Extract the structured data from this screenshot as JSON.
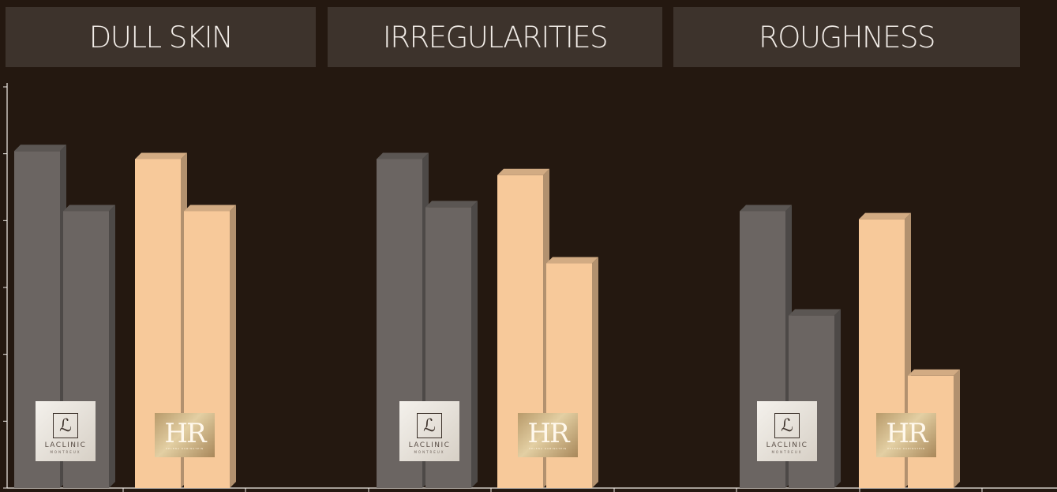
{
  "chart_data": {
    "type": "bar",
    "categories": [
      "DULL SKIN",
      "IRREGULARITIES",
      "ROUGHNESS"
    ],
    "groups": [
      {
        "category": "DULL SKIN",
        "brand": "LACLINIC MONTREUX",
        "values": [
          0.84,
          0.69
        ]
      },
      {
        "category": "DULL SKIN",
        "brand": "HR",
        "values": [
          0.82,
          0.69
        ]
      },
      {
        "category": "IRREGULARITIES",
        "brand": "LACLINIC MONTREUX",
        "values": [
          0.82,
          0.7
        ]
      },
      {
        "category": "IRREGULARITIES",
        "brand": "HR",
        "values": [
          0.78,
          0.56
        ]
      },
      {
        "category": "ROUGHNESS",
        "brand": "LACLINIC MONTREUX",
        "values": [
          0.69,
          0.43
        ]
      },
      {
        "category": "ROUGHNESS",
        "brand": "HR",
        "values": [
          0.67,
          0.28
        ]
      }
    ],
    "ylim": [
      0,
      1
    ],
    "grid": false,
    "colors": {
      "background": "#241810",
      "laclinic_bar": "#6b6562",
      "hr_bar": "#f7c99a",
      "header_box": "#3d332c",
      "header_text": "#f2ede8",
      "axis": "#f2ede8"
    }
  },
  "logos": {
    "laclinic": {
      "monogram": "ℒ",
      "name": "LACLINIC",
      "sub": "MONTREUX"
    },
    "hr": {
      "monogram": "HR",
      "sub": "HELENA RUBINSTEIN"
    }
  }
}
